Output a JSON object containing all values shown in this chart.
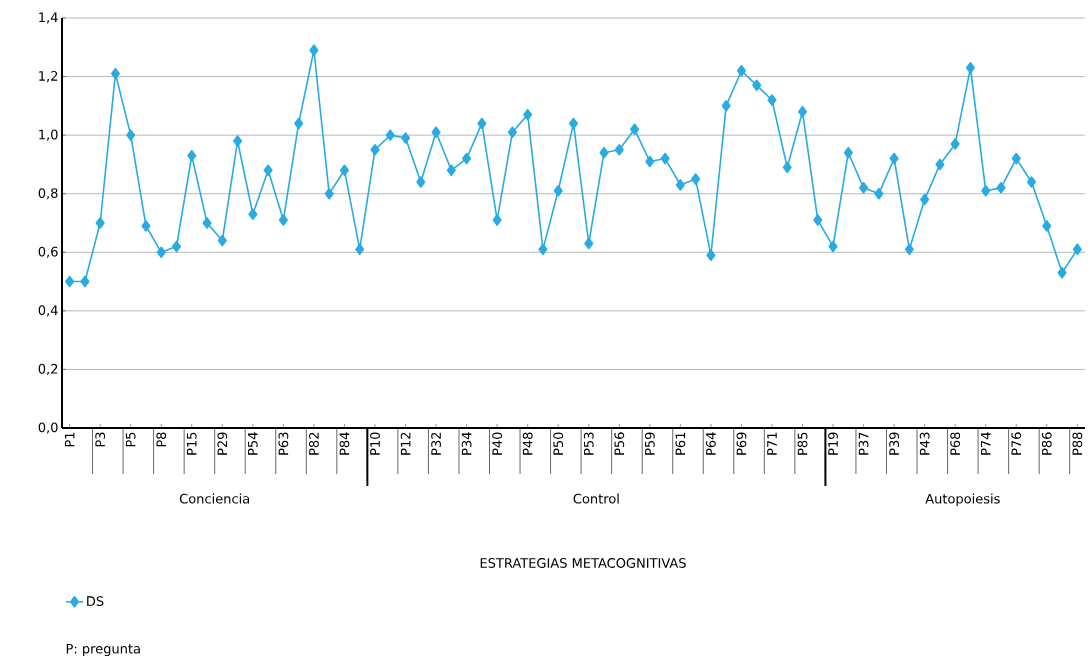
{
  "chart_data": {
    "type": "line",
    "categories": [
      "P1",
      null,
      "P3",
      null,
      "P5",
      null,
      "P8",
      null,
      "P15",
      null,
      "P29",
      null,
      "P54",
      null,
      "P63",
      null,
      "P82",
      null,
      "P84",
      null,
      "P10",
      null,
      "P12",
      null,
      "P32",
      null,
      "P34",
      null,
      "P40",
      null,
      "P48",
      null,
      "P50",
      null,
      "P53",
      null,
      "P56",
      null,
      "P59",
      null,
      "P61",
      null,
      "P64",
      null,
      "P69",
      null,
      "P71",
      null,
      "P85",
      null,
      "P19",
      null,
      "P37",
      null,
      "P39",
      null,
      "P43",
      null,
      "P68",
      null,
      "P74",
      null,
      "P76",
      null,
      "P86",
      null,
      "P88"
    ],
    "series": [
      {
        "name": "DS",
        "color": "#29abe2",
        "values": [
          0.5,
          0.5,
          0.7,
          1.21,
          1.0,
          0.69,
          0.6,
          0.62,
          0.93,
          0.7,
          0.64,
          0.98,
          0.73,
          0.88,
          0.71,
          1.04,
          1.29,
          0.8,
          0.88,
          0.61,
          0.95,
          1.0,
          0.99,
          0.84,
          1.01,
          0.88,
          0.92,
          1.04,
          0.71,
          1.01,
          1.07,
          0.61,
          0.81,
          1.04,
          0.63,
          0.94,
          0.95,
          1.02,
          0.91,
          0.92,
          0.83,
          0.85,
          0.59,
          1.1,
          1.22,
          1.17,
          1.12,
          0.89,
          1.08,
          0.71,
          0.62,
          0.94,
          0.82,
          0.8,
          0.92,
          0.61,
          0.78,
          0.9,
          0.97,
          1.23,
          0.81,
          0.82,
          0.92,
          0.84,
          0.69,
          0.53,
          0.61
        ]
      }
    ],
    "ylim": [
      0,
      1.4
    ],
    "yticks": [
      {
        "value": 0,
        "label": "0,0"
      },
      {
        "value": 0.2,
        "label": "0,2"
      },
      {
        "value": 0.4,
        "label": "0,4"
      },
      {
        "value": 0.6,
        "label": "0,6"
      },
      {
        "value": 0.8,
        "label": "0,8"
      },
      {
        "value": 1.0,
        "label": "1,0"
      },
      {
        "value": 1.2,
        "label": "1,2"
      },
      {
        "value": 1.4,
        "label": "1,4"
      }
    ],
    "grid": "y",
    "legend": "bottom left",
    "marker": "diamond",
    "line_style": "solid",
    "annotations": [
      "Conciencia",
      "Control",
      "Autopoiesis",
      "ESTRATEGIAS METACOGNITIVAS",
      "P: pregunta"
    ]
  }
}
